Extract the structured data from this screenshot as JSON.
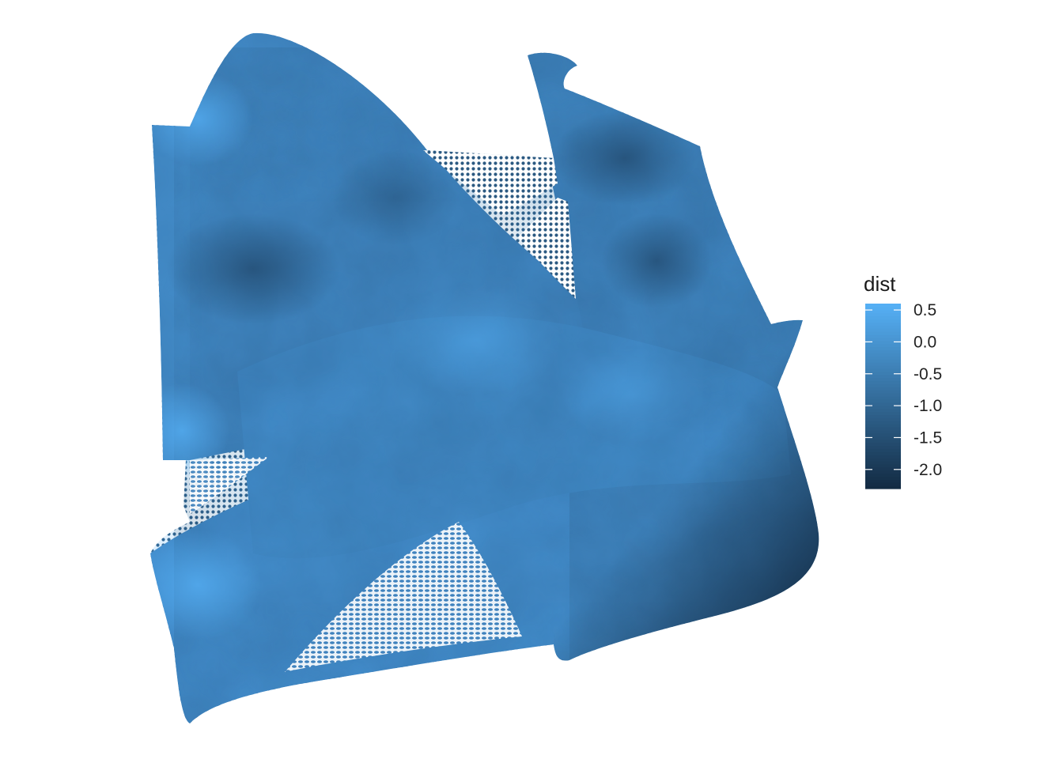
{
  "chart_data": {
    "type": "heatmap",
    "title": "",
    "xlabel": "",
    "ylabel": "",
    "axes_visible": false,
    "grid": false,
    "legend": {
      "title": "dist",
      "placement": "right",
      "breaks": [
        0.5,
        0.0,
        -0.5,
        -1.0,
        -1.5,
        -2.0
      ],
      "labels": [
        "0.5",
        "0.0",
        "-0.5",
        "-1.0",
        "-1.5",
        "-2.0"
      ],
      "limits": [
        -2.3,
        0.6
      ],
      "low_color": "#132B43",
      "high_color": "#56B1F7"
    },
    "dist_range_observed": [
      -2.3,
      0.6
    ]
  }
}
